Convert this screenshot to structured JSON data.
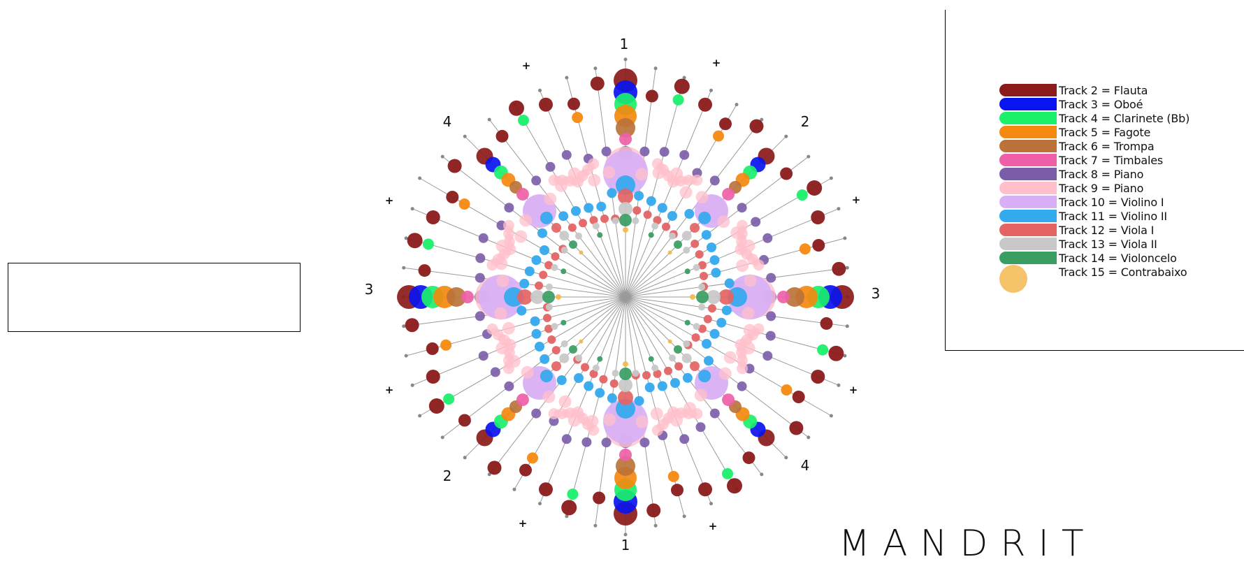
{
  "brand": "MANDRIT",
  "legend": [
    {
      "label": "Track 2 = Flauta",
      "color": "#8b1a1a"
    },
    {
      "label": "Track 3 = Oboé",
      "color": "#0a14f0"
    },
    {
      "label": "Track 4 = Clarinete (Bb)",
      "color": "#1af06a"
    },
    {
      "label": "Track 5 = Fagote",
      "color": "#f5890f"
    },
    {
      "label": "Track 6 = Trompa",
      "color": "#bb7339"
    },
    {
      "label": "Track 7 = Timbales",
      "color": "#ee5fa7"
    },
    {
      "label": "Track 8 = Piano",
      "color": "#7a5ca8"
    },
    {
      "label": "Track 9 = Piano",
      "color": "#ffc0cb"
    },
    {
      "label": "Track 10 = Violino I",
      "color": "#d8b0f5"
    },
    {
      "label": "Track 11 = Violino II",
      "color": "#33a9ee"
    },
    {
      "label": "Track 12 = Viola I",
      "color": "#e46464"
    },
    {
      "label": "Track 13 = Viola II",
      "color": "#c8c8c8"
    },
    {
      "label": "Track 14 = Violoncelo",
      "color": "#3a9d62"
    },
    {
      "label": "Track 15 = Contrabaixo",
      "color": "#f2b950"
    }
  ],
  "radial_labels": {
    "top": "1",
    "bottom": "1",
    "upper_right": "2",
    "lower_left": "2",
    "right": "3",
    "left": "3",
    "lower_right": "4",
    "upper_left": "4",
    "plus": "+"
  }
}
